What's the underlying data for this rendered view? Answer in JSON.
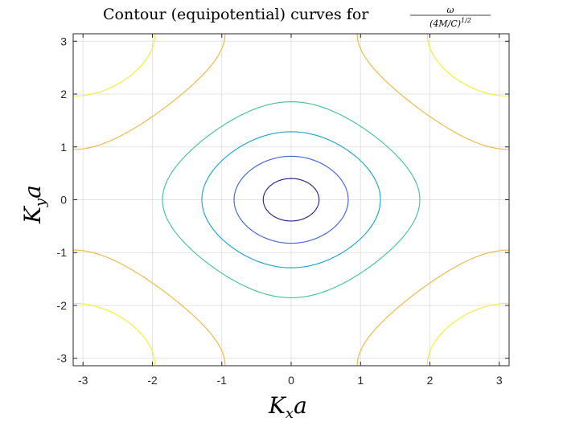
{
  "chart_data": {
    "type": "contour",
    "title": {
      "prefix": "Contour (equipotential) curves for ",
      "numerator": "ω",
      "denominator": "(4M/C)",
      "denominator_exp": "1/2"
    },
    "xlabel": {
      "main": "K",
      "sub": "x",
      "tail": "a"
    },
    "ylabel": {
      "main": "K",
      "sub": "y",
      "tail": "a"
    },
    "xlim": [
      -3.14159,
      3.14159
    ],
    "ylim": [
      -3.14159,
      3.14159
    ],
    "xticks": [
      -3,
      -2,
      -1,
      0,
      1,
      2,
      3
    ],
    "yticks": [
      -3,
      -2,
      -1,
      0,
      1,
      2,
      3
    ],
    "xtick_labels": [
      "-3",
      "-2",
      "-1",
      "0",
      "1",
      "2",
      "3"
    ],
    "ytick_labels": [
      "-3",
      "-2",
      "-1",
      "0",
      "1",
      "2",
      "3"
    ],
    "grid": true,
    "function": "sqrt(sin^2(Kx a/2) + sin^2(Ky a/2))",
    "levels": [
      {
        "value": 0.2,
        "color": "#2a1a8a"
      },
      {
        "value": 0.4,
        "color": "#3a5ee0"
      },
      {
        "value": 0.6,
        "color": "#14a0d2"
      },
      {
        "value": 0.8,
        "color": "#3cc48e"
      },
      {
        "value": 1.1,
        "color": "#f0b53a"
      },
      {
        "value": 1.3,
        "color": "#f6ec2a"
      }
    ]
  }
}
